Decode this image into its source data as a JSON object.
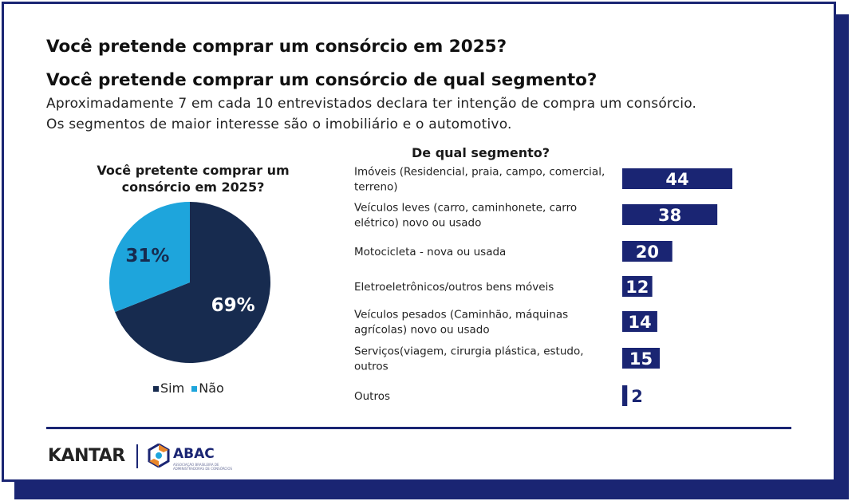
{
  "heading1": "Você pretende comprar um consórcio em 2025?",
  "heading2": "Você pretende comprar um consórcio de qual segmento?",
  "intro_line1": "Aproximadamente 7 em cada 10 entrevistados declara ter intenção de compra um consórcio.",
  "intro_line2": "Os segmentos de maior interesse são o imobiliário e o automotivo.",
  "colors": {
    "navy": "#172b4f",
    "lightblue": "#1ea5dc",
    "bar": "#1a2573",
    "frame": "#1a2573"
  },
  "footer": {
    "kantar": "KANTAR",
    "abac_name": "ABAC",
    "abac_sub": "ASSOCIAÇÃO BRASILEIRA DE ADMINISTRADORAS DE CONSÓRCIOS",
    "abac_icon": "abac-hexagon-logo-icon"
  },
  "chart_data": [
    {
      "type": "pie",
      "title_line1": "Você pretente comprar um",
      "title_line2": "consórcio em 2025?",
      "slices": [
        {
          "name": "Sim",
          "value": 69,
          "label": "69%",
          "color": "#172b4f"
        },
        {
          "name": "Não",
          "value": 31,
          "label": "31%",
          "color": "#1ea5dc"
        }
      ],
      "legend": "bottom"
    },
    {
      "type": "bar",
      "orientation": "horizontal",
      "title": "De qual segmento?",
      "categories": [
        [
          "Imóveis (Residencial, praia, campo, comercial,",
          "terreno)"
        ],
        [
          "Veículos leves (carro, caminhonete, carro",
          "elétrico) novo ou usado"
        ],
        [
          "Motocicleta - nova ou usada"
        ],
        [
          "Eletroeletrônicos/outros bens móveis"
        ],
        [
          "Veículos pesados (Caminhão, máquinas",
          "agrícolas) novo ou usado"
        ],
        [
          "Serviços(viagem, cirurgia plástica, estudo,",
          "outros"
        ],
        [
          "Outros"
        ]
      ],
      "values": [
        44,
        38,
        20,
        12,
        14,
        15,
        2
      ],
      "value_labels": [
        "44",
        "38",
        "20",
        "12",
        "14",
        "15",
        "2"
      ],
      "color": "#1a2573"
    }
  ]
}
